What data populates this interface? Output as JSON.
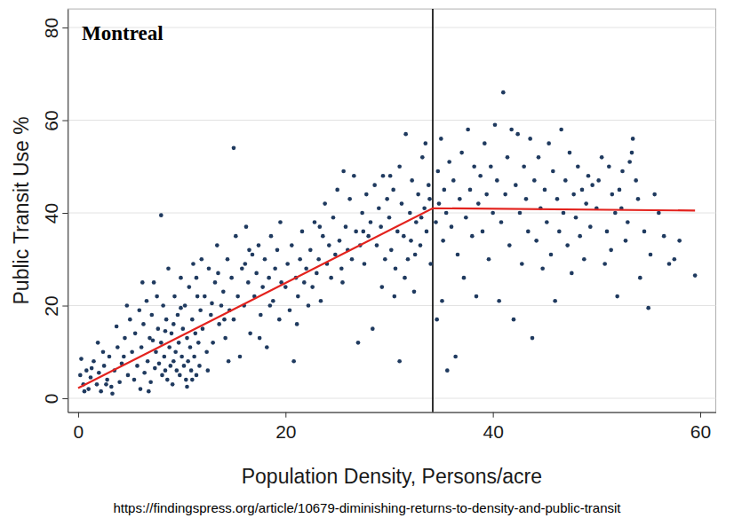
{
  "chart_data": {
    "type": "scatter",
    "title": "Montreal",
    "x_label": "Population Density, Persons/acre",
    "y_label": "Public Transit Use %",
    "source": "https://findingspress.org/article/10679-diminishing-returns-to-density-and-public-transit",
    "xlim": [
      -1,
      61.5
    ],
    "xticks": [
      0,
      20,
      40,
      60
    ],
    "ylim": [
      -3,
      84
    ],
    "yticks": [
      0,
      20,
      40,
      60,
      80
    ],
    "grid": true,
    "vertical_line": 34.2,
    "series": [
      {
        "type": "scatter",
        "marker": "circle",
        "color": "#1f3a5f",
        "x": [
          0.2,
          0.5,
          0.8,
          1,
          1.2,
          1.5,
          1.8,
          2,
          2.2,
          2.5,
          2.8,
          3,
          3.2,
          3.5,
          3.8,
          4,
          4.2,
          4.5,
          4.8,
          5,
          0.3,
          1.3,
          2.4,
          3.3,
          3.7,
          4.4,
          4.7,
          0.6,
          1.9,
          2.7,
          5.2,
          5.4,
          5.5,
          5.7,
          5.9,
          6,
          6.1,
          6.3,
          6.4,
          6.6,
          6.7,
          6.9,
          7,
          7.1,
          7.3,
          7.4,
          7.5,
          7.7,
          7.8,
          8,
          8,
          8.1,
          8.2,
          8.3,
          8.4,
          8.5,
          8.6,
          8.7,
          8.8,
          8.9,
          9,
          9.1,
          9.2,
          9.3,
          9.4,
          9.5,
          9.6,
          9.7,
          9.8,
          9.9,
          10,
          10.1,
          10.2,
          10.3,
          10.4,
          10.5,
          10.6,
          10.7,
          10.8,
          10.9,
          11,
          11.1,
          11.2,
          11.3,
          11.4,
          11.5,
          11.6,
          11.7,
          11.8,
          11.9,
          6.2,
          7.6,
          9.2,
          10.5,
          11,
          6.8,
          8.4,
          9.9,
          11.4,
          7.2,
          12,
          12.2,
          12.4,
          12.6,
          12.8,
          13,
          13.2,
          13.4,
          13.6,
          13.8,
          14,
          14.2,
          14.4,
          14.6,
          14.8,
          15,
          15,
          15.2,
          15.4,
          15.6,
          15.8,
          16,
          16.2,
          16.4,
          16.6,
          16.8,
          17,
          17.2,
          17.4,
          17.6,
          17.8,
          18,
          18.2,
          18.4,
          18.6,
          18.8,
          19,
          19.2,
          19.4,
          19.6,
          12.5,
          13.5,
          14.5,
          16.5,
          17.5,
          18.5,
          19.5,
          12.9,
          14.1,
          16.1,
          20,
          20.2,
          20.4,
          20.6,
          20.8,
          21,
          21.2,
          21.4,
          21.6,
          21.8,
          22,
          22.2,
          22.4,
          22.6,
          22.8,
          23,
          23.2,
          23.4,
          23.6,
          23.8,
          24,
          24.2,
          24.4,
          24.6,
          24.8,
          25,
          25.2,
          25.4,
          25.6,
          25.8,
          26,
          26.2,
          26.4,
          26.6,
          26.8,
          27,
          27.2,
          27.4,
          27.6,
          27.8,
          28,
          28.2,
          28.4,
          28.6,
          28.8,
          29,
          29.2,
          29.4,
          29.6,
          29.8,
          21.1,
          23.3,
          25.5,
          27.5,
          29.3,
          30,
          30.2,
          30.4,
          30.6,
          30.8,
          31,
          31,
          31.2,
          31.4,
          31.6,
          31.8,
          32,
          32.2,
          32.4,
          32.6,
          32.8,
          33,
          33.2,
          33.4,
          33.6,
          33.8,
          34,
          30.5,
          31.5,
          32.5,
          33.5,
          30.1,
          32.1,
          33.1,
          33.9,
          34.5,
          34.6,
          34.7,
          34.8,
          35,
          35.1,
          35.2,
          35.3,
          35.5,
          35.6,
          35.8,
          36,
          36.2,
          36.4,
          36.6,
          36.8,
          37,
          37.2,
          37.4,
          37.6,
          37.8,
          38,
          38.2,
          38.4,
          38.6,
          38.8,
          39,
          39.2,
          39.4,
          39.6,
          39.8,
          40,
          40.2,
          40.4,
          40.6,
          40.8,
          41,
          41.2,
          41.4,
          41.6,
          41.8,
          42,
          42.2,
          42.4,
          42.6,
          42.8,
          43,
          43.2,
          43.4,
          43.6,
          43.8,
          44,
          44.2,
          44.4,
          44.6,
          44.8,
          45,
          45.2,
          45.4,
          45.6,
          45.8,
          46,
          46.2,
          46.4,
          46.6,
          46.8,
          47,
          47.2,
          47.4,
          47.6,
          47.8,
          48,
          48.2,
          48.4,
          48.6,
          48.8,
          49,
          49.2,
          49.4,
          49.6,
          50,
          50.5,
          51,
          51.5,
          52,
          52.5,
          53,
          53.5,
          54,
          55,
          50.2,
          50.8,
          51.2,
          51.8,
          52.2,
          52.8,
          53.2,
          53.8,
          54.2,
          54.6,
          55.2,
          55.6,
          53.4,
          52.4,
          51.4,
          56.5,
          57,
          58,
          59.5,
          56,
          57.5
        ],
        "values": [
          5,
          3,
          6,
          2,
          4.5,
          8,
          3,
          5.5,
          1.5,
          7,
          4,
          9,
          2.5,
          6,
          11,
          3.5,
          7.5,
          13,
          5,
          17,
          8.5,
          6.5,
          10,
          1,
          15.5,
          9,
          20,
          1.5,
          12,
          3,
          10,
          4,
          14,
          7,
          19,
          2,
          11,
          16,
          5.5,
          21,
          8,
          13,
          3.5,
          18,
          25,
          6.5,
          10,
          15,
          7.5,
          39.5,
          12,
          5,
          20,
          9,
          6,
          17,
          4,
          28,
          11,
          7,
          14,
          3,
          8,
          22,
          10,
          6,
          18,
          12,
          5,
          26,
          9,
          15,
          7,
          20,
          4,
          13,
          8,
          24,
          11,
          6,
          17,
          29,
          9,
          14,
          5,
          22,
          12,
          7,
          19,
          30,
          25,
          22,
          16,
          2.5,
          4,
          1.5,
          14.5,
          19.5,
          26,
          12.5,
          15,
          22,
          10,
          28,
          18,
          12,
          25,
          33,
          16,
          20,
          23,
          13,
          30,
          19,
          26,
          54,
          17,
          35,
          22,
          9,
          28,
          20,
          37,
          25,
          14,
          31,
          22,
          27,
          33,
          18,
          24,
          30,
          11,
          26,
          35,
          21,
          28,
          32,
          17,
          25,
          6,
          27,
          8,
          32,
          13,
          20,
          38,
          20.5,
          17,
          29,
          24,
          29,
          19,
          33,
          8,
          26,
          22,
          30,
          36,
          25,
          28,
          20,
          32,
          24,
          38,
          27,
          30,
          21,
          35,
          42,
          29,
          33,
          26,
          39,
          31,
          45,
          34,
          28,
          49,
          37,
          32,
          43,
          30,
          48,
          36,
          12,
          33,
          40,
          29,
          44,
          35,
          38,
          15,
          46,
          33,
          41,
          37,
          48,
          30,
          43,
          16,
          37,
          25,
          36,
          24,
          39,
          32,
          45,
          28,
          36,
          50,
          8,
          42,
          35,
          57,
          30,
          40,
          47,
          23,
          38,
          44,
          33,
          52,
          41,
          36,
          46,
          29,
          22,
          26,
          31,
          55,
          48,
          34,
          39,
          43,
          38,
          17,
          49,
          42,
          56,
          21,
          34,
          45,
          40,
          6,
          51,
          37,
          47,
          9,
          31,
          43,
          53,
          26,
          39,
          58,
          45,
          35,
          50,
          22,
          42,
          48,
          36,
          55,
          44,
          30,
          50,
          40,
          59,
          47,
          21,
          38,
          66,
          44,
          52,
          33,
          58,
          17,
          46,
          57,
          40,
          29,
          50,
          43,
          36,
          56,
          13,
          47,
          34,
          52,
          41,
          28,
          45,
          38,
          55,
          31,
          49,
          21,
          43,
          36,
          58,
          40,
          47,
          33,
          53,
          27,
          44,
          39,
          50,
          35,
          45,
          30,
          42,
          48,
          37,
          46,
          41,
          52,
          36,
          44,
          22,
          49,
          38,
          56,
          43,
          19.5,
          47,
          29,
          50,
          40,
          45,
          34,
          51,
          47,
          26,
          36,
          31,
          44,
          53,
          41,
          32,
          35,
          29,
          34,
          26.5,
          40,
          30
        ]
      },
      {
        "type": "line",
        "color": "#e3231e",
        "x": [
          0,
          34.2,
          59.5
        ],
        "values": [
          2.2,
          41,
          40.5
        ]
      }
    ]
  }
}
